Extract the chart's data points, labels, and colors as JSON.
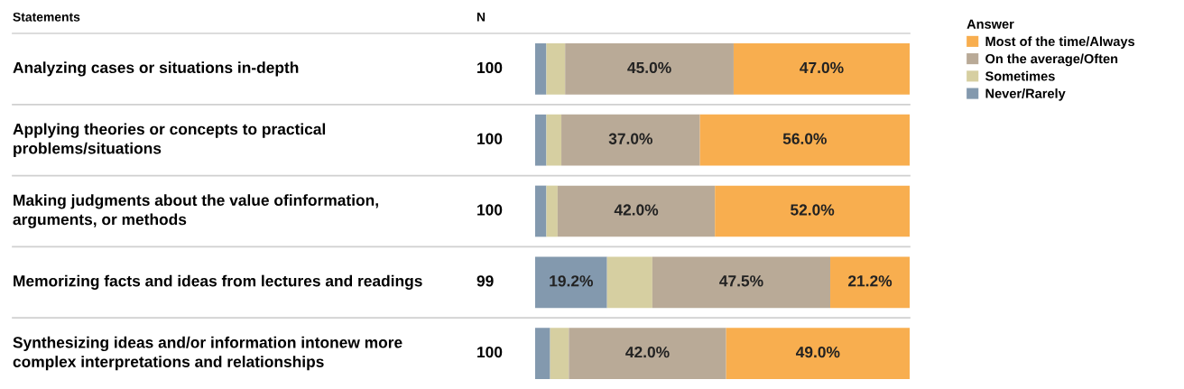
{
  "chart_data": {
    "type": "bar",
    "orientation": "horizontal",
    "stacked": true,
    "categories": [
      "Analyzing cases or situations in-depth",
      "Applying theories or concepts to practical problems/situations",
      "Making judgments about the value ofinformation, arguments, or methods",
      "Memorizing facts and ideas from lectures and readings",
      "Synthesizing ideas and/or information intonew more complex interpretations and relationships"
    ],
    "series": [
      {
        "name": "Never/Rarely",
        "color": "#8399ae",
        "values": [
          3,
          3,
          3,
          19.2,
          4
        ],
        "value_labels": [
          null,
          null,
          null,
          "19.2%",
          null
        ]
      },
      {
        "name": "Sometimes",
        "color": "#d6cfa1",
        "values": [
          5,
          4,
          3,
          12.1,
          5
        ],
        "value_labels": [
          null,
          null,
          null,
          null,
          null
        ]
      },
      {
        "name": "On the average/Often",
        "color": "#b9aa97",
        "values": [
          45,
          37,
          42,
          47.5,
          42
        ],
        "value_labels": [
          "45.0%",
          "37.0%",
          "42.0%",
          "47.5%",
          "42.0%"
        ]
      },
      {
        "name": "Most of the time/Always",
        "color": "#f8ae4f",
        "values": [
          47,
          56,
          52,
          21.2,
          49
        ],
        "value_labels": [
          "47.0%",
          "56.0%",
          "52.0%",
          "21.2%",
          "49.0%"
        ]
      }
    ],
    "xlim": [
      0,
      100
    ],
    "legend": "top right",
    "legend_title": "Answer",
    "annotations": [
      "Statements",
      "N",
      "100",
      "100",
      "100",
      "99",
      "100"
    ]
  }
}
